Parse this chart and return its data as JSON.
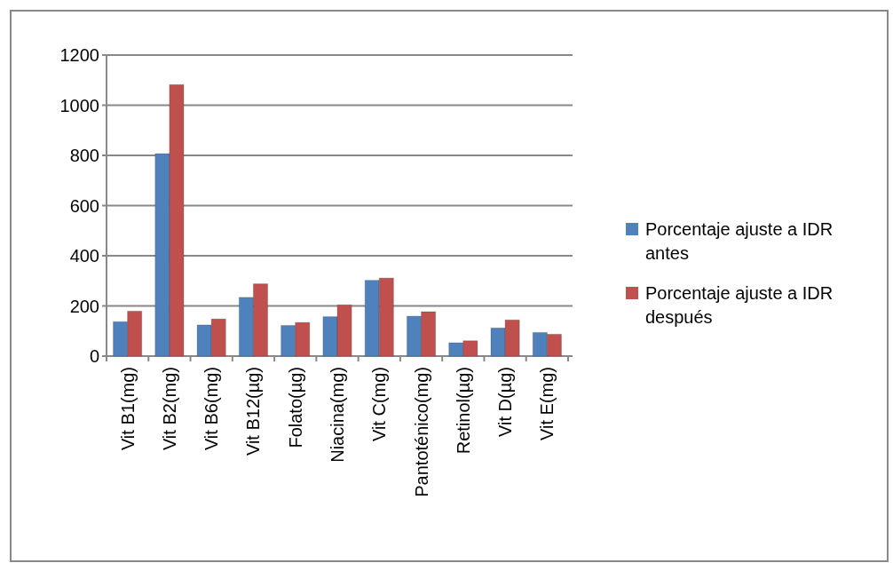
{
  "chart_data": {
    "type": "bar",
    "categories": [
      "Vit B1(mg)",
      "Vit B2(mg)",
      "Vit B6(mg)",
      "Vit B12(µg)",
      "Folato(µg)",
      "Niacina(mg)",
      "Vit C(mg)",
      "Pantoténico(mg)",
      "Retinol(µg)",
      "Vit D(µg)",
      "Vit E(mg)"
    ],
    "series": [
      {
        "name": "Porcentaje ajuste a IDR antes",
        "color": "#4f81bd",
        "values": [
          137,
          807,
          124,
          234,
          122,
          157,
          302,
          159,
          53,
          112,
          94
        ]
      },
      {
        "name": "Porcentaje ajuste a IDR después",
        "color": "#c0504d",
        "values": [
          179,
          1082,
          148,
          288,
          134,
          204,
          311,
          177,
          61,
          144,
          87
        ]
      }
    ],
    "ylim": [
      0,
      1200
    ],
    "yticks": [
      0,
      200,
      400,
      600,
      800,
      1000,
      1200
    ],
    "grid": "y",
    "legend": "right"
  }
}
